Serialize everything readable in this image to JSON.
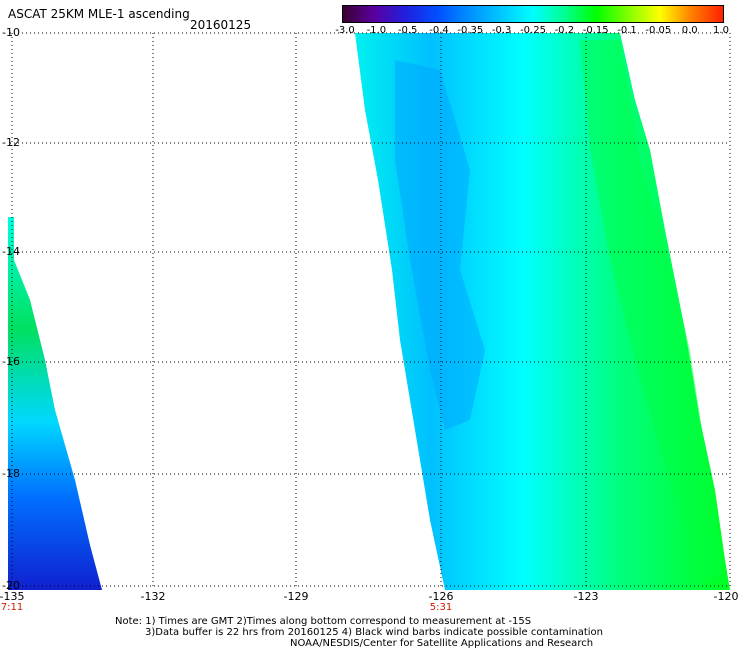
{
  "header": {
    "title": "ASCAT 25KM MLE-1 ascending",
    "date": "20160125"
  },
  "colorbar": {
    "labels": [
      "-3.0",
      "-1.0",
      "-0.5",
      "-0.4",
      "-0.35",
      "-0.3",
      "-0.25",
      "-0.2",
      "-0.15",
      "-0.1",
      "-0.05",
      "0.0",
      "1.0"
    ],
    "colors": [
      "#3b0030",
      "#5a00a0",
      "#2020e0",
      "#0050ff",
      "#0090ff",
      "#00c8ff",
      "#00ffff",
      "#00ff90",
      "#00ff00",
      "#80ff00",
      "#ffff00",
      "#ff8000",
      "#ff2000"
    ]
  },
  "axes": {
    "y_ticks": [
      "-10",
      "-12",
      "-14",
      "-16",
      "-18",
      "-20"
    ],
    "x_ticks": [
      "-135",
      "-132",
      "-129",
      "-126",
      "-123",
      "-120"
    ],
    "time_labels": [
      {
        "text": "7:11",
        "lon": "-135"
      },
      {
        "text": "5:31",
        "lon": "-126"
      }
    ]
  },
  "footer": {
    "line1": "Note: 1) Times are GMT 2)Times along bottom correspond to measurement at -15S",
    "line2": "3)Data buffer is 22 hrs from 20160125 4) Black wind barbs indicate possible contamination",
    "line3": "NOAA/NESDIS/Center for Satellite Applications and Research"
  }
}
